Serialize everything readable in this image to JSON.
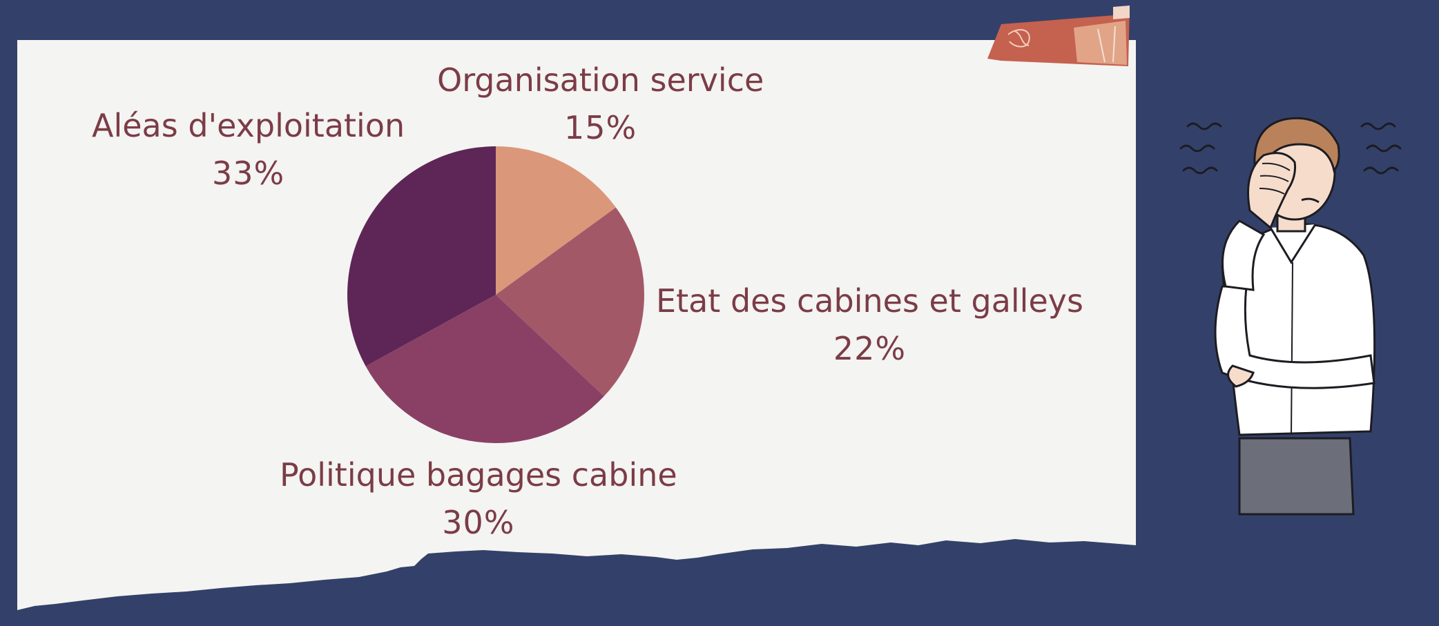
{
  "chart_data": {
    "type": "pie",
    "slices": [
      {
        "label": "Organisation service",
        "value": 15,
        "value_label": "15%",
        "color": "#db977a"
      },
      {
        "label": "Etat des cabines et galleys",
        "value": 22,
        "value_label": "22%",
        "color": "#a35868"
      },
      {
        "label": "Politique bagages cabine",
        "value": 30,
        "value_label": "30%",
        "color": "#8a4065"
      },
      {
        "label": "Aléas d'exploitation",
        "value": 33,
        "value_label": "33%",
        "color": "#5e2656"
      }
    ],
    "start": "12 o'clock, clockwise"
  },
  "colors": {
    "background": "#33416a",
    "paper": "#f4f4f2",
    "label_text": "#7b3c46",
    "tape": "#c5614f"
  },
  "illustration": {
    "icon": "stressed-man-facepalm-icon"
  }
}
